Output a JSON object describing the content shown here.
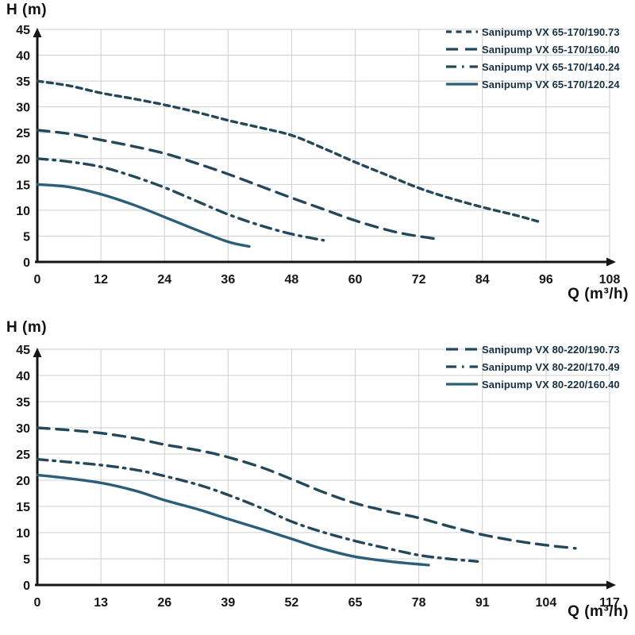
{
  "colors": {
    "background": "#ffffff",
    "grid": "#cbcfd2",
    "axis": "#161616",
    "tick_text": "#161616",
    "legend_text": "#16303f",
    "curve_dashed": "#24485a",
    "curve_solid": "#2b5f78"
  },
  "chart_data": [
    {
      "type": "line",
      "title": "",
      "ylabel": "H (m)",
      "xlabel": "Q (m³/h)",
      "xlim": [
        0,
        108
      ],
      "ylim": [
        0,
        45
      ],
      "x_ticks": [
        0,
        12,
        24,
        36,
        48,
        60,
        72,
        84,
        96,
        108
      ],
      "y_ticks": [
        0,
        5,
        10,
        15,
        20,
        25,
        30,
        35,
        40,
        45
      ],
      "grid": true,
      "legend_position": "top-right",
      "series": [
        {
          "name": "Sanipump VX 65-170/190.73",
          "line_style": "short-dash",
          "points": [
            [
              0,
              35
            ],
            [
              6,
              34.1
            ],
            [
              12,
              32.7
            ],
            [
              18,
              31.6
            ],
            [
              24,
              30.4
            ],
            [
              30,
              29
            ],
            [
              36,
              27.4
            ],
            [
              42,
              26
            ],
            [
              48,
              24.5
            ],
            [
              54,
              22
            ],
            [
              60,
              19.3
            ],
            [
              66,
              16.8
            ],
            [
              72,
              14.3
            ],
            [
              78,
              12.3
            ],
            [
              84,
              10.6
            ],
            [
              90,
              9.1
            ],
            [
              95,
              7.7
            ]
          ]
        },
        {
          "name": "Sanipump VX 65-170/160.40",
          "line_style": "long-dash",
          "points": [
            [
              0,
              25.5
            ],
            [
              6,
              24.8
            ],
            [
              12,
              23.6
            ],
            [
              18,
              22.4
            ],
            [
              24,
              21
            ],
            [
              30,
              19.1
            ],
            [
              36,
              17
            ],
            [
              42,
              14.7
            ],
            [
              48,
              12.4
            ],
            [
              54,
              10.2
            ],
            [
              60,
              8
            ],
            [
              66,
              6.2
            ],
            [
              70,
              5.3
            ],
            [
              75,
              4.5
            ]
          ]
        },
        {
          "name": "Sanipump VX 65-170/140.24",
          "line_style": "dash-dot",
          "points": [
            [
              0,
              20
            ],
            [
              6,
              19.4
            ],
            [
              12,
              18.4
            ],
            [
              18,
              16.6
            ],
            [
              24,
              14.4
            ],
            [
              30,
              11.8
            ],
            [
              36,
              9.2
            ],
            [
              42,
              7.1
            ],
            [
              48,
              5.4
            ],
            [
              54,
              4.2
            ]
          ]
        },
        {
          "name": "Sanipump VX 65-170/120.24",
          "line_style": "solid",
          "points": [
            [
              0,
              15
            ],
            [
              6,
              14.5
            ],
            [
              12,
              13.1
            ],
            [
              18,
              11.1
            ],
            [
              24,
              8.7
            ],
            [
              30,
              6.2
            ],
            [
              36,
              3.9
            ],
            [
              40,
              3
            ]
          ]
        }
      ]
    },
    {
      "type": "line",
      "title": "",
      "ylabel": "H (m)",
      "xlabel": "Q (m³/h)",
      "xlim": [
        0,
        117
      ],
      "ylim": [
        0,
        45
      ],
      "x_ticks": [
        0,
        13,
        26,
        39,
        52,
        65,
        78,
        91,
        104,
        117
      ],
      "y_ticks": [
        0,
        5,
        10,
        15,
        20,
        25,
        30,
        35,
        40,
        45
      ],
      "grid": true,
      "legend_position": "top-right",
      "series": [
        {
          "name": "Sanipump VX 80-220/190.73",
          "line_style": "long-dash",
          "points": [
            [
              0,
              30
            ],
            [
              6,
              29.6
            ],
            [
              13,
              29
            ],
            [
              20,
              28
            ],
            [
              26,
              26.8
            ],
            [
              33,
              25.7
            ],
            [
              39,
              24.4
            ],
            [
              46,
              22.4
            ],
            [
              52,
              20.2
            ],
            [
              58,
              17.9
            ],
            [
              65,
              15.6
            ],
            [
              72,
              14
            ],
            [
              78,
              12.8
            ],
            [
              85,
              11
            ],
            [
              91,
              9.6
            ],
            [
              98,
              8.4
            ],
            [
              104,
              7.6
            ],
            [
              110,
              7
            ]
          ]
        },
        {
          "name": "Sanipump VX 80-220/170.49",
          "line_style": "dash-dot",
          "points": [
            [
              0,
              24
            ],
            [
              6,
              23.5
            ],
            [
              13,
              22.9
            ],
            [
              20,
              22
            ],
            [
              26,
              20.8
            ],
            [
              33,
              19.1
            ],
            [
              39,
              17.2
            ],
            [
              46,
              14.6
            ],
            [
              52,
              12.1
            ],
            [
              58,
              10.2
            ],
            [
              65,
              8.4
            ],
            [
              72,
              6.9
            ],
            [
              78,
              5.7
            ],
            [
              84,
              5
            ],
            [
              90,
              4.5
            ]
          ]
        },
        {
          "name": "Sanipump VX 80-220/160.40",
          "line_style": "solid",
          "points": [
            [
              0,
              21
            ],
            [
              6,
              20.4
            ],
            [
              13,
              19.5
            ],
            [
              20,
              18
            ],
            [
              26,
              16.2
            ],
            [
              33,
              14.4
            ],
            [
              39,
              12.6
            ],
            [
              46,
              10.6
            ],
            [
              52,
              8.8
            ],
            [
              58,
              7
            ],
            [
              65,
              5.4
            ],
            [
              73,
              4.4
            ],
            [
              80,
              3.8
            ]
          ]
        }
      ]
    }
  ]
}
